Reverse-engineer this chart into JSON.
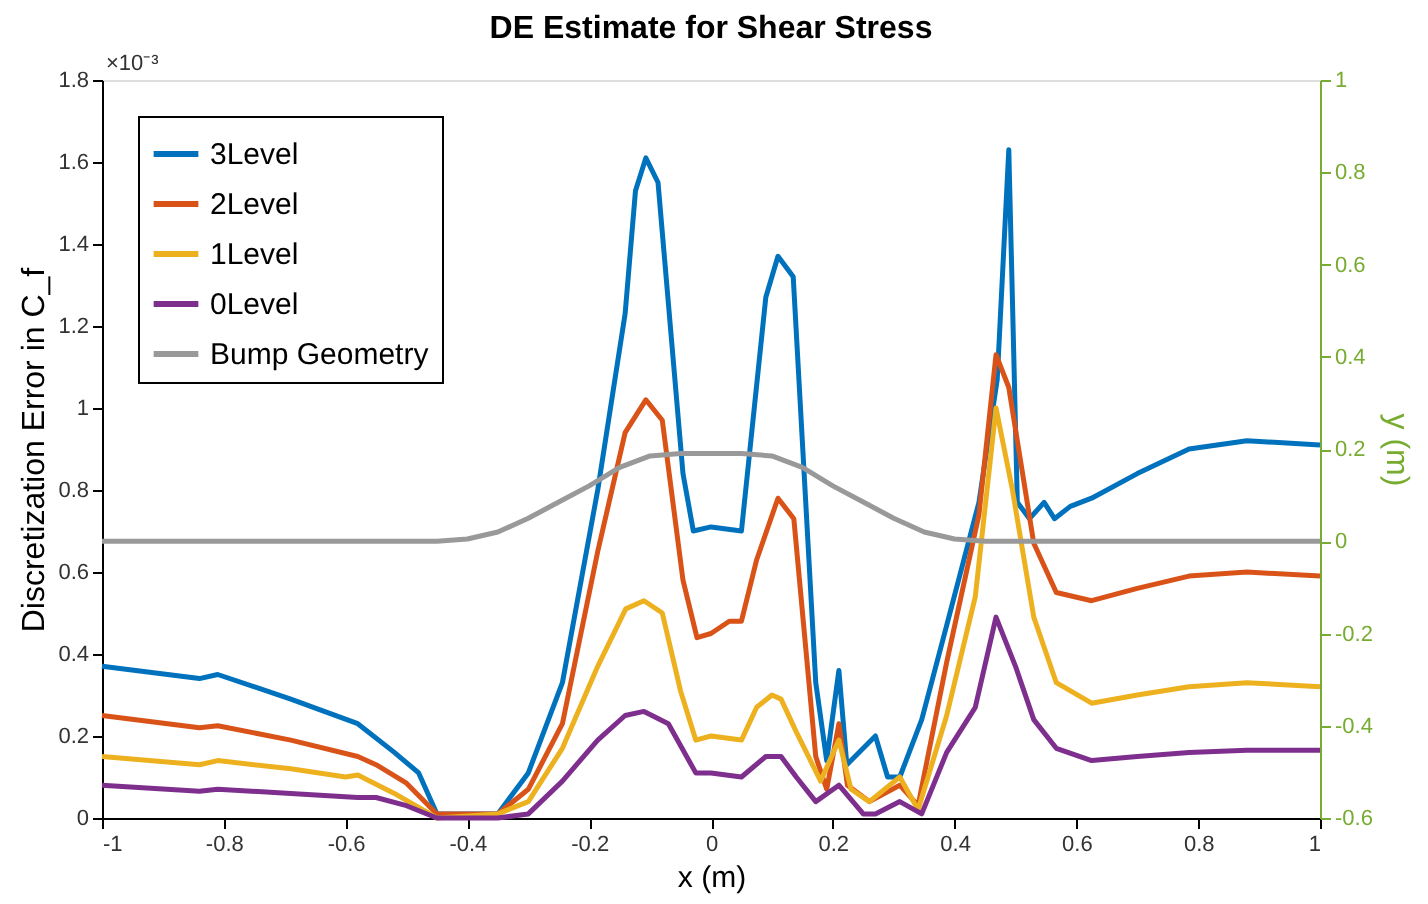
{
  "chart_data": {
    "type": "line",
    "title": "DE Estimate for Shear Stress",
    "xlabel": "x (m)",
    "ylabel": "Discretization Error in C_f",
    "y2label": "y (m)",
    "annotations": [
      "×10⁻³"
    ],
    "xlim": [
      -1,
      1
    ],
    "xticks": [
      -1,
      -0.8,
      -0.6,
      -0.4,
      -0.2,
      0,
      0.2,
      0.4,
      0.6,
      0.8,
      1
    ],
    "ylim": [
      0,
      1.8
    ],
    "yticks": [
      0,
      0.2,
      0.4,
      0.6,
      0.8,
      1,
      1.2,
      1.4,
      1.6,
      1.8
    ],
    "y2lim": [
      -0.6,
      1
    ],
    "y2ticks": [
      -0.6,
      -0.4,
      -0.2,
      0,
      0.2,
      0.4,
      0.6,
      0.8,
      1
    ],
    "grid": false,
    "legend": "top left",
    "line_style": "solid",
    "marker": "none",
    "series": [
      {
        "name": "3Level",
        "color": "#0072bd",
        "x": [
          -1,
          -0.84,
          -0.81,
          -0.69,
          -0.58,
          -0.52,
          -0.48,
          -0.45,
          -0.35,
          -0.3,
          -0.244,
          -0.186,
          -0.141,
          -0.124,
          -0.107,
          -0.087,
          -0.046,
          -0.029,
          0.0,
          0.05,
          0.09,
          0.11,
          0.135,
          0.172,
          0.19,
          0.21,
          0.223,
          0.27,
          0.29,
          0.31,
          0.346,
          0.387,
          0.44,
          0.47,
          0.489,
          0.503,
          0.523,
          0.547,
          0.564,
          0.59,
          0.625,
          0.7,
          0.785,
          0.88,
          1
        ],
        "values": [
          0.37,
          0.34,
          0.35,
          0.29,
          0.23,
          0.16,
          0.11,
          0.01,
          0.01,
          0.11,
          0.33,
          0.8,
          1.23,
          1.53,
          1.61,
          1.55,
          0.84,
          0.7,
          0.71,
          0.7,
          1.27,
          1.37,
          1.32,
          0.33,
          0.14,
          0.36,
          0.13,
          0.2,
          0.1,
          0.1,
          0.24,
          0.47,
          0.77,
          1.07,
          1.63,
          0.77,
          0.73,
          0.77,
          0.73,
          0.76,
          0.78,
          0.84,
          0.9,
          0.92,
          0.91
        ]
      },
      {
        "name": "2Level",
        "color": "#d95319",
        "x": [
          -1,
          -0.84,
          -0.81,
          -0.69,
          -0.58,
          -0.55,
          -0.5,
          -0.45,
          -0.35,
          -0.3,
          -0.244,
          -0.186,
          -0.141,
          -0.107,
          -0.08,
          -0.046,
          -0.023,
          0.0,
          0.03,
          0.05,
          0.075,
          0.11,
          0.136,
          0.172,
          0.19,
          0.21,
          0.224,
          0.26,
          0.31,
          0.34,
          0.387,
          0.44,
          0.468,
          0.489,
          0.53,
          0.567,
          0.625,
          0.7,
          0.785,
          0.88,
          1
        ],
        "values": [
          0.25,
          0.22,
          0.225,
          0.19,
          0.15,
          0.13,
          0.085,
          0.01,
          0.01,
          0.07,
          0.23,
          0.65,
          0.94,
          1.02,
          0.97,
          0.58,
          0.44,
          0.45,
          0.48,
          0.48,
          0.63,
          0.78,
          0.73,
          0.15,
          0.07,
          0.23,
          0.08,
          0.04,
          0.08,
          0.03,
          0.38,
          0.74,
          1.13,
          1.05,
          0.67,
          0.55,
          0.53,
          0.56,
          0.59,
          0.6,
          0.59
        ]
      },
      {
        "name": "1Level",
        "color": "#edb120",
        "x": [
          -1,
          -0.84,
          -0.81,
          -0.69,
          -0.6,
          -0.58,
          -0.52,
          -0.45,
          -0.35,
          -0.3,
          -0.244,
          -0.186,
          -0.14,
          -0.11,
          -0.08,
          -0.05,
          -0.025,
          0.0,
          0.05,
          0.075,
          0.1,
          0.115,
          0.14,
          0.18,
          0.21,
          0.23,
          0.26,
          0.31,
          0.34,
          0.387,
          0.434,
          0.468,
          0.495,
          0.53,
          0.567,
          0.625,
          0.7,
          0.785,
          0.88,
          1
        ],
        "values": [
          0.15,
          0.13,
          0.14,
          0.12,
          0.1,
          0.105,
          0.06,
          0.0,
          0.01,
          0.04,
          0.17,
          0.37,
          0.51,
          0.53,
          0.5,
          0.31,
          0.19,
          0.2,
          0.19,
          0.27,
          0.3,
          0.29,
          0.21,
          0.09,
          0.19,
          0.07,
          0.04,
          0.1,
          0.02,
          0.25,
          0.54,
          1.0,
          0.8,
          0.49,
          0.33,
          0.28,
          0.3,
          0.32,
          0.33,
          0.32
        ]
      },
      {
        "name": "0Level",
        "color": "#7e2f8e",
        "x": [
          -1,
          -0.84,
          -0.81,
          -0.69,
          -0.58,
          -0.55,
          -0.5,
          -0.45,
          -0.35,
          -0.3,
          -0.244,
          -0.186,
          -0.141,
          -0.11,
          -0.07,
          -0.025,
          0.0,
          0.05,
          0.09,
          0.115,
          0.14,
          0.172,
          0.21,
          0.25,
          0.27,
          0.31,
          0.346,
          0.387,
          0.434,
          0.468,
          0.5,
          0.53,
          0.567,
          0.625,
          0.7,
          0.785,
          0.88,
          1
        ],
        "values": [
          0.08,
          0.065,
          0.07,
          0.06,
          0.05,
          0.05,
          0.03,
          0.0,
          0.0,
          0.01,
          0.09,
          0.19,
          0.25,
          0.26,
          0.23,
          0.11,
          0.11,
          0.1,
          0.15,
          0.15,
          0.1,
          0.04,
          0.08,
          0.01,
          0.01,
          0.04,
          0.01,
          0.16,
          0.27,
          0.49,
          0.37,
          0.24,
          0.17,
          0.14,
          0.15,
          0.16,
          0.165,
          0.165
        ]
      },
      {
        "name": "Bump Geometry",
        "color": "#999999",
        "axis": "y2",
        "x": [
          -1,
          -0.45,
          -0.4,
          -0.35,
          -0.3,
          -0.25,
          -0.2,
          -0.15,
          -0.1,
          -0.05,
          0,
          0.05,
          0.1,
          0.15,
          0.2,
          0.25,
          0.3,
          0.35,
          0.4,
          0.45,
          1
        ],
        "values": [
          0,
          0,
          0.005,
          0.02,
          0.05,
          0.085,
          0.12,
          0.16,
          0.185,
          0.19,
          0.19,
          0.19,
          0.185,
          0.16,
          0.12,
          0.085,
          0.05,
          0.02,
          0.005,
          0,
          0
        ]
      }
    ]
  }
}
